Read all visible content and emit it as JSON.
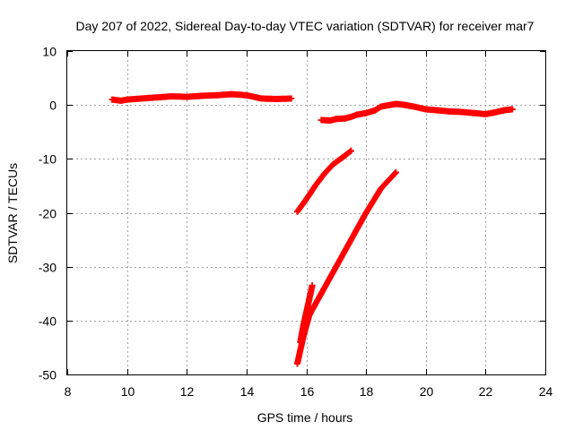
{
  "chart_data": {
    "type": "scatter",
    "title": "Day 207 of 2022, Sidereal Day-to-day VTEC variation (SDTVAR) for receiver mar7",
    "xlabel": "GPS time / hours",
    "ylabel": "SDTVAR / TECUs",
    "xlim": [
      8,
      24
    ],
    "ylim": [
      -50,
      10
    ],
    "xticks": [
      "8",
      "10",
      "12",
      "14",
      "16",
      "18",
      "20",
      "22",
      "24"
    ],
    "yticks": [
      "10",
      "0",
      "-10",
      "-20",
      "-30",
      "-40",
      "-50"
    ],
    "grid": true,
    "marker": "plus",
    "color": "#ff0000",
    "series": [
      {
        "x": [
          9.5,
          9.8,
          10.0,
          10.5,
          11.0,
          11.5,
          12.0,
          12.5,
          13.0,
          13.5,
          14.0,
          14.5,
          15.0,
          15.5
        ],
        "y": [
          1.0,
          0.8,
          1.0,
          1.2,
          1.4,
          1.6,
          1.5,
          1.7,
          1.8,
          2.0,
          1.8,
          1.2,
          1.1,
          1.2
        ]
      },
      {
        "x": [
          16.5,
          16.8,
          17.0,
          17.3,
          17.5,
          17.7,
          18.0,
          18.3,
          18.5,
          18.8,
          19.0,
          19.3,
          19.6,
          20.0,
          20.4,
          20.8,
          21.2,
          21.6,
          22.0,
          22.3,
          22.6,
          22.9
        ],
        "y": [
          -2.8,
          -2.9,
          -2.6,
          -2.5,
          -2.2,
          -1.8,
          -1.5,
          -1.0,
          -0.3,
          0.0,
          0.2,
          0.0,
          -0.3,
          -0.8,
          -1.0,
          -1.2,
          -1.3,
          -1.5,
          -1.7,
          -1.4,
          -1.0,
          -0.8
        ]
      },
      {
        "x": [
          15.7,
          16.0,
          16.3,
          16.6,
          16.9,
          17.2,
          17.5
        ],
        "y": [
          -19.8,
          -17.5,
          -15.0,
          -12.8,
          -11.0,
          -9.8,
          -8.5
        ]
      },
      {
        "x": [
          15.7,
          15.9,
          16.1,
          16.5,
          17.0,
          17.5,
          18.0,
          18.5,
          19.0
        ],
        "y": [
          -48.0,
          -43.0,
          -39.0,
          -35.0,
          -30.0,
          -25.0,
          -20.0,
          -15.5,
          -12.5
        ]
      },
      {
        "x": [
          15.8,
          15.9,
          16.0,
          16.1,
          16.2
        ],
        "y": [
          -44.0,
          -41.0,
          -38.5,
          -36.0,
          -33.5
        ]
      }
    ]
  }
}
